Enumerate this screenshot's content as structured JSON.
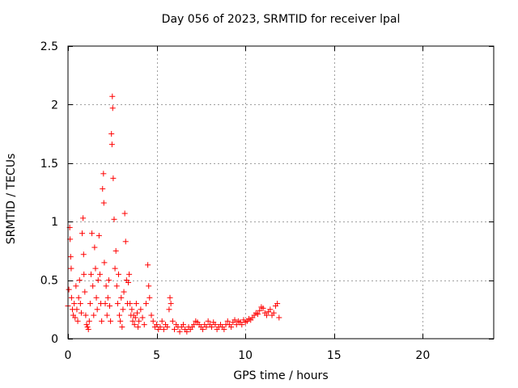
{
  "chart_data": {
    "type": "scatter",
    "title": "Day 056 of 2023, SRMTID for receiver lpal",
    "xlabel": "GPS time / hours",
    "ylabel": "SRMTID / TECUs",
    "xlim": [
      0,
      24
    ],
    "ylim": [
      0,
      2.5
    ],
    "xticks": [
      0,
      5,
      10,
      15,
      20
    ],
    "yticks": [
      0,
      0.5,
      1,
      1.5,
      2,
      2.5
    ],
    "xtick_labels": [
      "0",
      "5",
      "10",
      "15",
      "20"
    ],
    "ytick_labels": [
      "0",
      "0.5",
      "1",
      "1.5",
      "2",
      "2.5"
    ],
    "grid": true,
    "marker": "+",
    "series": [
      {
        "name": "SRMTID",
        "color": "#ff0000",
        "points": [
          [
            0.0,
            0.28
          ],
          [
            0.05,
            0.42
          ],
          [
            0.1,
            0.95
          ],
          [
            0.12,
            0.85
          ],
          [
            0.15,
            0.7
          ],
          [
            0.18,
            0.6
          ],
          [
            0.2,
            0.35
          ],
          [
            0.25,
            0.25
          ],
          [
            0.3,
            0.2
          ],
          [
            0.35,
            0.3
          ],
          [
            0.4,
            0.18
          ],
          [
            0.45,
            0.45
          ],
          [
            0.5,
            0.25
          ],
          [
            0.55,
            0.15
          ],
          [
            0.6,
            0.35
          ],
          [
            0.65,
            0.5
          ],
          [
            0.7,
            0.3
          ],
          [
            0.75,
            0.22
          ],
          [
            0.8,
            0.9
          ],
          [
            0.85,
            1.03
          ],
          [
            0.88,
            0.72
          ],
          [
            0.9,
            0.55
          ],
          [
            0.95,
            0.4
          ],
          [
            1.0,
            0.2
          ],
          [
            1.05,
            0.12
          ],
          [
            1.1,
            0.1
          ],
          [
            1.15,
            0.08
          ],
          [
            1.2,
            0.15
          ],
          [
            1.25,
            0.3
          ],
          [
            1.3,
            0.55
          ],
          [
            1.35,
            0.9
          ],
          [
            1.4,
            0.45
          ],
          [
            1.45,
            0.2
          ],
          [
            1.5,
            0.78
          ],
          [
            1.55,
            0.6
          ],
          [
            1.6,
            0.35
          ],
          [
            1.65,
            0.25
          ],
          [
            1.7,
            0.5
          ],
          [
            1.75,
            0.88
          ],
          [
            1.8,
            0.55
          ],
          [
            1.85,
            0.3
          ],
          [
            1.9,
            0.15
          ],
          [
            1.95,
            1.28
          ],
          [
            2.0,
            1.41
          ],
          [
            2.02,
            1.16
          ],
          [
            2.05,
            0.65
          ],
          [
            2.1,
            0.3
          ],
          [
            2.15,
            0.45
          ],
          [
            2.2,
            0.2
          ],
          [
            2.25,
            0.35
          ],
          [
            2.3,
            0.5
          ],
          [
            2.35,
            0.28
          ],
          [
            2.4,
            0.15
          ],
          [
            2.45,
            1.75
          ],
          [
            2.48,
            1.66
          ],
          [
            2.5,
            2.07
          ],
          [
            2.52,
            1.97
          ],
          [
            2.55,
            1.37
          ],
          [
            2.6,
            1.02
          ],
          [
            2.65,
            0.6
          ],
          [
            2.7,
            0.75
          ],
          [
            2.75,
            0.45
          ],
          [
            2.8,
            0.3
          ],
          [
            2.85,
            0.55
          ],
          [
            2.9,
            0.2
          ],
          [
            2.95,
            0.15
          ],
          [
            3.0,
            0.35
          ],
          [
            3.05,
            0.1
          ],
          [
            3.1,
            0.25
          ],
          [
            3.15,
            0.4
          ],
          [
            3.2,
            1.07
          ],
          [
            3.25,
            0.83
          ],
          [
            3.3,
            0.5
          ],
          [
            3.35,
            0.3
          ],
          [
            3.4,
            0.48
          ],
          [
            3.45,
            0.55
          ],
          [
            3.5,
            0.3
          ],
          [
            3.55,
            0.2
          ],
          [
            3.6,
            0.25
          ],
          [
            3.65,
            0.15
          ],
          [
            3.7,
            0.2
          ],
          [
            3.75,
            0.12
          ],
          [
            3.8,
            0.18
          ],
          [
            3.85,
            0.3
          ],
          [
            3.9,
            0.22
          ],
          [
            3.95,
            0.1
          ],
          [
            4.0,
            0.15
          ],
          [
            4.1,
            0.25
          ],
          [
            4.2,
            0.18
          ],
          [
            4.3,
            0.12
          ],
          [
            4.4,
            0.3
          ],
          [
            4.5,
            0.63
          ],
          [
            4.55,
            0.45
          ],
          [
            4.6,
            0.35
          ],
          [
            4.7,
            0.2
          ],
          [
            4.8,
            0.15
          ],
          [
            4.9,
            0.1
          ],
          [
            5.0,
            0.12
          ],
          [
            5.1,
            0.08
          ],
          [
            5.2,
            0.1
          ],
          [
            5.3,
            0.15
          ],
          [
            5.4,
            0.08
          ],
          [
            5.5,
            0.12
          ],
          [
            5.6,
            0.1
          ],
          [
            5.7,
            0.25
          ],
          [
            5.75,
            0.35
          ],
          [
            5.8,
            0.3
          ],
          [
            5.9,
            0.15
          ],
          [
            6.0,
            0.08
          ],
          [
            6.1,
            0.12
          ],
          [
            6.2,
            0.1
          ],
          [
            6.3,
            0.06
          ],
          [
            6.4,
            0.1
          ],
          [
            6.5,
            0.12
          ],
          [
            6.6,
            0.08
          ],
          [
            6.7,
            0.06
          ],
          [
            6.8,
            0.1
          ],
          [
            6.9,
            0.08
          ],
          [
            7.0,
            0.1
          ],
          [
            7.1,
            0.12
          ],
          [
            7.2,
            0.15
          ],
          [
            7.3,
            0.14
          ],
          [
            7.4,
            0.12
          ],
          [
            7.5,
            0.1
          ],
          [
            7.6,
            0.08
          ],
          [
            7.7,
            0.12
          ],
          [
            7.8,
            0.1
          ],
          [
            7.9,
            0.15
          ],
          [
            8.0,
            0.12
          ],
          [
            8.1,
            0.1
          ],
          [
            8.2,
            0.14
          ],
          [
            8.3,
            0.12
          ],
          [
            8.4,
            0.08
          ],
          [
            8.5,
            0.1
          ],
          [
            8.6,
            0.12
          ],
          [
            8.7,
            0.1
          ],
          [
            8.8,
            0.08
          ],
          [
            8.9,
            0.12
          ],
          [
            9.0,
            0.15
          ],
          [
            9.1,
            0.12
          ],
          [
            9.2,
            0.1
          ],
          [
            9.3,
            0.14
          ],
          [
            9.4,
            0.16
          ],
          [
            9.5,
            0.12
          ],
          [
            9.6,
            0.15
          ],
          [
            9.7,
            0.14
          ],
          [
            9.8,
            0.12
          ],
          [
            9.9,
            0.16
          ],
          [
            10.0,
            0.14
          ],
          [
            10.1,
            0.15
          ],
          [
            10.2,
            0.17
          ],
          [
            10.3,
            0.16
          ],
          [
            10.4,
            0.18
          ],
          [
            10.5,
            0.2
          ],
          [
            10.6,
            0.22
          ],
          [
            10.7,
            0.21
          ],
          [
            10.8,
            0.24
          ],
          [
            10.9,
            0.27
          ],
          [
            11.0,
            0.26
          ],
          [
            11.1,
            0.22
          ],
          [
            11.2,
            0.2
          ],
          [
            11.3,
            0.23
          ],
          [
            11.4,
            0.25
          ],
          [
            11.5,
            0.2
          ],
          [
            11.6,
            0.22
          ],
          [
            11.7,
            0.28
          ],
          [
            11.8,
            0.3
          ],
          [
            11.9,
            0.18
          ]
        ]
      }
    ]
  }
}
